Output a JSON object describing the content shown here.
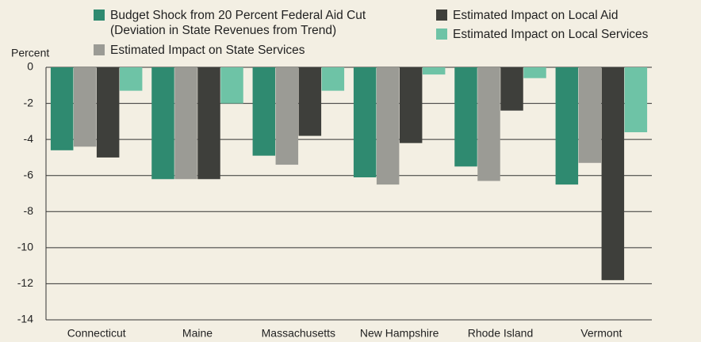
{
  "chart_data": {
    "type": "bar",
    "y_label": "Percent",
    "categories": [
      "Connecticut",
      "Maine",
      "Massachusetts",
      "New Hampshire",
      "Rhode Island",
      "Vermont"
    ],
    "series": [
      {
        "name": "Budget Shock from 20 Percent Federal Aid Cut (Deviation in State Revenues from Trend)",
        "color": "#2f8a70",
        "values": [
          -4.6,
          -6.2,
          -4.9,
          -6.1,
          -5.5,
          -6.5
        ]
      },
      {
        "name": "Estimated Impact on State Services",
        "color": "#9b9b95",
        "values": [
          -4.4,
          -6.2,
          -5.4,
          -6.5,
          -6.3,
          -5.3
        ]
      },
      {
        "name": "Estimated Impact on Local Aid",
        "color": "#3e3f3b",
        "values": [
          -5.0,
          -6.2,
          -3.8,
          -4.2,
          -2.4,
          -11.8
        ]
      },
      {
        "name": "Estimated Impact on Local Services",
        "color": "#6ec3a6",
        "values": [
          -1.3,
          -2.0,
          -1.3,
          -0.4,
          -0.6,
          -3.6
        ]
      }
    ],
    "ylim": [
      -14,
      0
    ],
    "yticks": [
      0,
      -2,
      -4,
      -6,
      -8,
      -10,
      -12,
      -14
    ],
    "grid": true
  }
}
